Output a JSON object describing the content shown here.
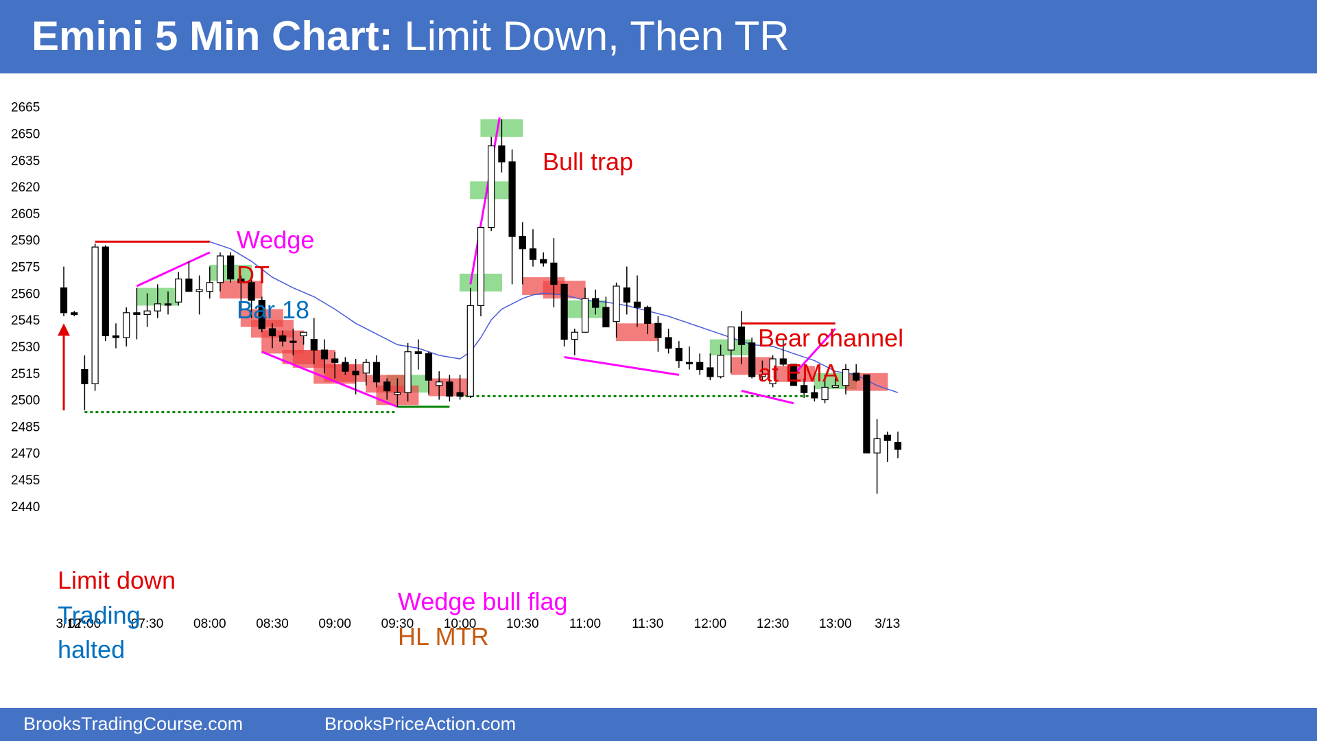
{
  "header": {
    "title_bold": "Emini 5 Min Chart:",
    "title_rest": " Limit Down, Then TR"
  },
  "footer": {
    "left": "BrooksTradingCourse.com",
    "right": "BrooksPriceAction.com"
  },
  "colors": {
    "bar": "#4472c4",
    "bull": "#000000",
    "up_box": "#66cc66",
    "down_box": "#ee4444",
    "red": "#e00000",
    "magenta": "#ff00ff",
    "blue": "#0070c0",
    "orange": "#c55a11",
    "green": "#008000",
    "ema": "#4a5bd8"
  },
  "chart_data": {
    "type": "candlestick",
    "title": "Emini 5 Min Chart: Limit Down, Then TR",
    "ylim": [
      2432,
      2682
    ],
    "yticks": [
      2665,
      2650,
      2635,
      2620,
      2605,
      2590,
      2575,
      2560,
      2545,
      2530,
      2515,
      2500,
      2485,
      2470,
      2455,
      2440
    ],
    "xticks": [
      {
        "bar": 0,
        "label": "3/12"
      },
      {
        "bar": 2,
        "label": "07:00"
      },
      {
        "bar": 8,
        "label": "07:30"
      },
      {
        "bar": 14,
        "label": "08:00"
      },
      {
        "bar": 20,
        "label": "08:30"
      },
      {
        "bar": 26,
        "label": "09:00"
      },
      {
        "bar": 32,
        "label": "09:30"
      },
      {
        "bar": 38,
        "label": "10:00"
      },
      {
        "bar": 44,
        "label": "10:30"
      },
      {
        "bar": 50,
        "label": "11:00"
      },
      {
        "bar": 56,
        "label": "11:30"
      },
      {
        "bar": 62,
        "label": "12:00"
      },
      {
        "bar": 68,
        "label": "12:30"
      },
      {
        "bar": 74,
        "label": "13:00"
      },
      {
        "bar": 79,
        "label": "3/13"
      }
    ],
    "candles": [
      [
        0,
        2563,
        2575,
        2547,
        2549
      ],
      [
        1,
        2549,
        2550,
        2547,
        2548
      ],
      [
        2,
        2517,
        2525,
        2494,
        2509
      ],
      [
        3,
        2509,
        2588,
        2505,
        2586
      ],
      [
        4,
        2586,
        2587,
        2533,
        2536
      ],
      [
        5,
        2536,
        2543,
        2529,
        2535
      ],
      [
        6,
        2535,
        2552,
        2530,
        2549
      ],
      [
        7,
        2549,
        2563,
        2534,
        2548
      ],
      [
        8,
        2548,
        2560,
        2541,
        2550
      ],
      [
        9,
        2550,
        2565,
        2546,
        2554
      ],
      [
        10,
        2554,
        2561,
        2548,
        2554
      ],
      [
        11,
        2555,
        2572,
        2553,
        2568
      ],
      [
        12,
        2568,
        2578,
        2561,
        2561
      ],
      [
        13,
        2561,
        2570,
        2548,
        2562
      ],
      [
        14,
        2561,
        2575,
        2557,
        2566
      ],
      [
        15,
        2566,
        2583,
        2561,
        2581
      ],
      [
        16,
        2581,
        2583,
        2566,
        2568
      ],
      [
        17,
        2568,
        2570,
        2550,
        2566
      ],
      [
        18,
        2566,
        2569,
        2546,
        2556
      ],
      [
        19,
        2556,
        2558,
        2538,
        2540
      ],
      [
        20,
        2540,
        2543,
        2529,
        2536
      ],
      [
        21,
        2536,
        2539,
        2530,
        2533
      ],
      [
        22,
        2533,
        2540,
        2525,
        2533
      ],
      [
        23,
        2536,
        2538,
        2531,
        2538
      ],
      [
        24,
        2534,
        2546,
        2520,
        2528
      ],
      [
        25,
        2528,
        2534,
        2515,
        2523
      ],
      [
        26,
        2523,
        2527,
        2512,
        2521
      ],
      [
        27,
        2521,
        2524,
        2514,
        2516
      ],
      [
        28,
        2516,
        2523,
        2503,
        2514
      ],
      [
        29,
        2515,
        2523,
        2508,
        2521
      ],
      [
        30,
        2521,
        2525,
        2507,
        2510
      ],
      [
        31,
        2510,
        2512,
        2500,
        2505
      ],
      [
        32,
        2503,
        2512,
        2496,
        2504
      ],
      [
        33,
        2504,
        2532,
        2499,
        2527
      ],
      [
        34,
        2527,
        2534,
        2517,
        2526
      ],
      [
        35,
        2526,
        2527,
        2503,
        2511
      ],
      [
        36,
        2508,
        2516,
        2500,
        2510
      ],
      [
        37,
        2510,
        2514,
        2499,
        2502
      ],
      [
        38,
        2504,
        2514,
        2500,
        2502
      ],
      [
        39,
        2502,
        2563,
        2501,
        2553
      ],
      [
        40,
        2553,
        2597,
        2547,
        2597
      ],
      [
        41,
        2597,
        2648,
        2595,
        2643
      ],
      [
        42,
        2643,
        2658,
        2628,
        2634
      ],
      [
        43,
        2634,
        2641,
        2565,
        2592
      ],
      [
        44,
        2592,
        2600,
        2565,
        2585
      ],
      [
        45,
        2585,
        2596,
        2575,
        2579
      ],
      [
        46,
        2579,
        2583,
        2575,
        2577
      ],
      [
        47,
        2577,
        2591,
        2552,
        2565
      ],
      [
        48,
        2565,
        2565,
        2530,
        2534
      ],
      [
        49,
        2534,
        2540,
        2525,
        2538
      ],
      [
        50,
        2538,
        2563,
        2538,
        2557
      ],
      [
        51,
        2557,
        2562,
        2548,
        2552
      ],
      [
        52,
        2552,
        2558,
        2543,
        2541
      ],
      [
        53,
        2544,
        2566,
        2535,
        2564
      ],
      [
        54,
        2563,
        2575,
        2548,
        2555
      ],
      [
        55,
        2555,
        2570,
        2541,
        2552
      ],
      [
        56,
        2552,
        2553,
        2537,
        2543
      ],
      [
        57,
        2543,
        2547,
        2527,
        2535
      ],
      [
        58,
        2535,
        2540,
        2526,
        2529
      ],
      [
        59,
        2529,
        2533,
        2518,
        2522
      ],
      [
        60,
        2521,
        2530,
        2517,
        2521
      ],
      [
        61,
        2521,
        2526,
        2514,
        2517
      ],
      [
        62,
        2518,
        2526,
        2511,
        2513
      ],
      [
        63,
        2513,
        2531,
        2512,
        2525
      ],
      [
        64,
        2528,
        2541,
        2515,
        2541
      ],
      [
        65,
        2541,
        2550,
        2520,
        2531
      ],
      [
        66,
        2532,
        2535,
        2512,
        2513
      ],
      [
        67,
        2513,
        2522,
        2511,
        2514
      ],
      [
        68,
        2509,
        2525,
        2507,
        2523
      ],
      [
        69,
        2523,
        2534,
        2519,
        2520
      ],
      [
        70,
        2520,
        2520,
        2510,
        2508
      ],
      [
        71,
        2508,
        2512,
        2501,
        2504
      ],
      [
        72,
        2504,
        2508,
        2499,
        2501
      ],
      [
        73,
        2500,
        2514,
        2498,
        2507
      ],
      [
        74,
        2507,
        2512,
        2507,
        2508
      ],
      [
        75,
        2508,
        2520,
        2503,
        2517
      ],
      [
        76,
        2515,
        2520,
        2510,
        2511
      ],
      [
        77,
        2514,
        2514,
        2470,
        2470
      ],
      [
        78,
        2470,
        2489,
        2447,
        2478
      ],
      [
        79,
        2480,
        2482,
        2465,
        2477
      ],
      [
        80,
        2476,
        2482,
        2467,
        2472
      ]
    ],
    "ema": [
      [
        14,
        2589
      ],
      [
        16,
        2585
      ],
      [
        18,
        2578
      ],
      [
        20,
        2569
      ],
      [
        22,
        2563
      ],
      [
        24,
        2558
      ],
      [
        26,
        2551
      ],
      [
        28,
        2543
      ],
      [
        30,
        2537
      ],
      [
        32,
        2531
      ],
      [
        34,
        2529
      ],
      [
        36,
        2525
      ],
      [
        38,
        2523
      ],
      [
        39,
        2527
      ],
      [
        40,
        2535
      ],
      [
        41,
        2545
      ],
      [
        42,
        2551
      ],
      [
        44,
        2557
      ],
      [
        45,
        2559
      ],
      [
        46,
        2560
      ],
      [
        48,
        2559
      ],
      [
        50,
        2556
      ],
      [
        52,
        2555
      ],
      [
        54,
        2553
      ],
      [
        56,
        2550
      ],
      [
        58,
        2547
      ],
      [
        60,
        2543
      ],
      [
        62,
        2539
      ],
      [
        64,
        2535
      ],
      [
        66,
        2531
      ],
      [
        68,
        2530
      ],
      [
        70,
        2526
      ],
      [
        72,
        2522
      ],
      [
        74,
        2516
      ],
      [
        76,
        2514
      ],
      [
        78,
        2508
      ],
      [
        80,
        2504
      ]
    ],
    "up_boxes": [
      [
        9,
        2563,
        2553
      ],
      [
        16,
        2576,
        2567
      ],
      [
        33,
        2514,
        2504
      ],
      [
        40,
        2571,
        2561
      ],
      [
        41,
        2623,
        2613
      ],
      [
        42,
        2658,
        2648
      ],
      [
        50,
        2556,
        2546
      ],
      [
        64,
        2534,
        2525
      ],
      [
        74,
        2515,
        2506
      ]
    ],
    "down_boxes": [
      [
        17,
        2567,
        2557
      ],
      [
        19,
        2551,
        2541
      ],
      [
        20,
        2545,
        2535
      ],
      [
        21,
        2539,
        2526
      ],
      [
        23,
        2528,
        2520
      ],
      [
        24,
        2528,
        2518
      ],
      [
        26,
        2520,
        2509
      ],
      [
        27,
        2520,
        2510
      ],
      [
        31,
        2514,
        2504
      ],
      [
        32,
        2508,
        2497
      ],
      [
        37,
        2512,
        2502
      ],
      [
        46,
        2569,
        2559
      ],
      [
        48,
        2567,
        2557
      ],
      [
        55,
        2543,
        2533
      ],
      [
        66,
        2524,
        2514
      ],
      [
        70,
        2519,
        2510
      ],
      [
        77,
        2515,
        2505
      ]
    ],
    "annotations": [
      {
        "id": "bull_trap",
        "text": "Bull trap",
        "color": "red"
      },
      {
        "id": "wedge",
        "text": "Wedge",
        "color": "magenta"
      },
      {
        "id": "dt",
        "text": "DT",
        "color": "red"
      },
      {
        "id": "bar18",
        "text": "Bar 18",
        "color": "blue"
      },
      {
        "id": "bear_channel",
        "text": "Bear channel",
        "color": "red"
      },
      {
        "id": "at_ema",
        "text": "at EMA",
        "color": "red"
      },
      {
        "id": "limit_down",
        "text": "Limit down",
        "color": "red"
      },
      {
        "id": "trading",
        "text": "Trading",
        "color": "blue"
      },
      {
        "id": "halted",
        "text": "halted",
        "color": "blue"
      },
      {
        "id": "wedge_bull_flag",
        "text": "Wedge bull flag",
        "color": "magenta"
      },
      {
        "id": "hl_mtr",
        "text": "HL MTR",
        "color": "orange"
      }
    ]
  }
}
